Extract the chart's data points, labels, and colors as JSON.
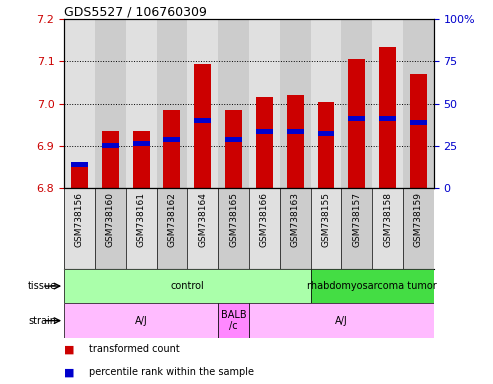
{
  "title": "GDS5527 / 106760309",
  "samples": [
    "GSM738156",
    "GSM738160",
    "GSM738161",
    "GSM738162",
    "GSM738164",
    "GSM738165",
    "GSM738166",
    "GSM738163",
    "GSM738155",
    "GSM738157",
    "GSM738158",
    "GSM738159"
  ],
  "bar_bottom": 6.8,
  "bar_tops": [
    6.855,
    6.935,
    6.935,
    6.985,
    7.095,
    6.985,
    7.015,
    7.02,
    7.005,
    7.105,
    7.135,
    7.07
  ],
  "percentile_values": [
    6.855,
    6.9,
    6.905,
    6.915,
    6.96,
    6.915,
    6.935,
    6.935,
    6.93,
    6.965,
    6.965,
    6.955
  ],
  "ylim_left": [
    6.8,
    7.2
  ],
  "ylim_right": [
    0,
    100
  ],
  "yticks_left": [
    6.8,
    6.9,
    7.0,
    7.1,
    7.2
  ],
  "yticks_right": [
    0,
    25,
    50,
    75,
    100
  ],
  "bar_color": "#cc0000",
  "percentile_color": "#0000cc",
  "tissue_groups": [
    {
      "label": "control",
      "start": 0,
      "end": 8,
      "color": "#aaffaa"
    },
    {
      "label": "rhabdomyosarcoma tumor",
      "start": 8,
      "end": 12,
      "color": "#44dd44"
    }
  ],
  "strain_groups": [
    {
      "label": "A/J",
      "start": 0,
      "end": 5,
      "color": "#ffbbff"
    },
    {
      "label": "BALB\n/c",
      "start": 5,
      "end": 6,
      "color": "#ff88ff"
    },
    {
      "label": "A/J",
      "start": 6,
      "end": 12,
      "color": "#ffbbff"
    }
  ],
  "ylabel_left_color": "#cc0000",
  "ylabel_right_color": "#0000cc",
  "background_color": "#ffffff",
  "col_bg_even": "#e0e0e0",
  "col_bg_odd": "#cccccc"
}
